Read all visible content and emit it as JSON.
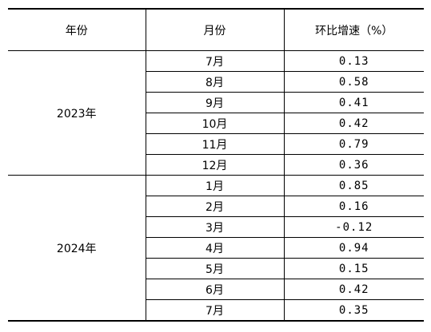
{
  "header": {
    "year": "年份",
    "month": "月份",
    "rate": "环比增速（%）"
  },
  "groups": [
    {
      "year": "2023年",
      "rows": [
        {
          "month": "7月",
          "value": "0.13"
        },
        {
          "month": "8月",
          "value": "0.58"
        },
        {
          "month": "9月",
          "value": "0.41"
        },
        {
          "month": "10月",
          "value": "0.42"
        },
        {
          "month": "11月",
          "value": "0.79"
        },
        {
          "month": "12月",
          "value": "0.36"
        }
      ]
    },
    {
      "year": "2024年",
      "rows": [
        {
          "month": "1月",
          "value": "0.85"
        },
        {
          "month": "2月",
          "value": "0.16"
        },
        {
          "month": "3月",
          "value": "-0.12"
        },
        {
          "month": "4月",
          "value": "0.94"
        },
        {
          "month": "5月",
          "value": "0.15"
        },
        {
          "month": "6月",
          "value": "0.42"
        },
        {
          "month": "7月",
          "value": "0.35"
        }
      ]
    }
  ]
}
